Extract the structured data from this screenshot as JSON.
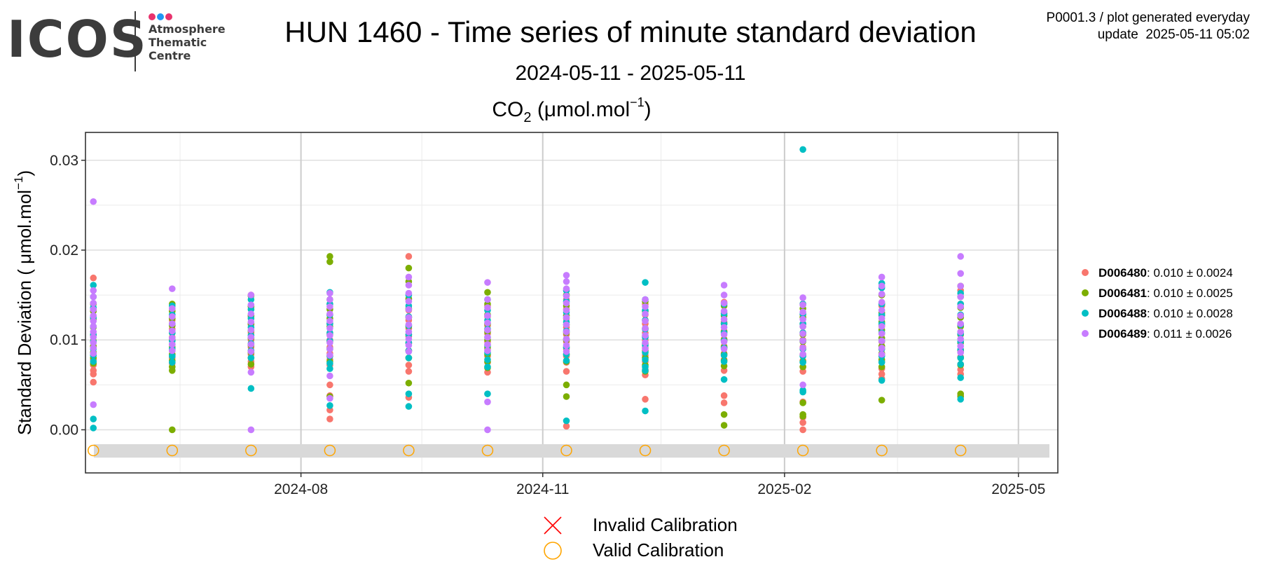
{
  "logo": {
    "wordmark": "ICOS",
    "text": "Atmosphere\nThematic\nCentre",
    "dot_colors": [
      "#e8336d",
      "#2196f3",
      "#e8336d"
    ]
  },
  "meta": {
    "line1": "P0001.3 / plot generated everyday",
    "line2": "update  2025-05-11 05:02"
  },
  "header": {
    "title": "HUN 1460 - Time series of minute standard deviation",
    "subtitle": "2024-05-11 - 2025-05-11"
  },
  "chart_data": {
    "type": "scatter",
    "panel_title": {
      "main": "CO",
      "sub": "2",
      "unit_prefix": " (μmol.mol",
      "sup": "−1",
      "unit_suffix": ")"
    },
    "ylabel": {
      "main": "Standard Deviation ( μmol.mol",
      "sup": "−1",
      "suffix": ")"
    },
    "xlim": [
      "2024-05-11",
      "2025-05-16"
    ],
    "ylim": [
      -0.0048,
      0.0331
    ],
    "x_ticks": [
      {
        "date": "2024-08-01",
        "label": "2024-08"
      },
      {
        "date": "2024-11-01",
        "label": "2024-11"
      },
      {
        "date": "2025-02-01",
        "label": "2025-02"
      },
      {
        "date": "2025-05-01",
        "label": "2025-05"
      }
    ],
    "x_minor_ticks": [
      "2024-06-16",
      "2024-09-16",
      "2024-12-16",
      "2025-03-16"
    ],
    "y_ticks": [
      {
        "value": 0.0,
        "label": "0.00"
      },
      {
        "value": 0.01,
        "label": "0.01"
      },
      {
        "value": 0.02,
        "label": "0.02"
      },
      {
        "value": 0.03,
        "label": "0.03"
      }
    ],
    "y_minor_ticks": [
      0.005,
      0.015,
      0.025
    ],
    "grid": true,
    "calibration_band": [
      -0.0031,
      -0.0016
    ],
    "calibration_dates": [
      "2024-05-14",
      "2024-06-13",
      "2024-07-13",
      "2024-08-12",
      "2024-09-11",
      "2024-10-11",
      "2024-11-10",
      "2024-12-10",
      "2025-01-09",
      "2025-02-08",
      "2025-03-10",
      "2025-04-09"
    ],
    "calibration_y": -0.0023,
    "series": [
      {
        "name": "D006480",
        "stats": ": 0.010 ± 0.0024",
        "color": "#F8766D",
        "groups": [
          {
            "date": "2024-05-14",
            "values": [
              0.0169,
              0.0135,
              0.0125,
              0.0115,
              0.0105,
              0.0098,
              0.0092,
              0.0085,
              0.0078,
              0.0072,
              0.0066,
              0.0062,
              0.0053
            ]
          },
          {
            "date": "2024-06-13",
            "values": [
              0.0135,
              0.0122,
              0.0112,
              0.0103,
              0.0095,
              0.0088,
              0.008,
              0.0074
            ]
          },
          {
            "date": "2024-07-13",
            "values": [
              0.015,
              0.0138,
              0.0126,
              0.0117,
              0.0108,
              0.01,
              0.0092,
              0.0084,
              0.0076,
              0.007
            ]
          },
          {
            "date": "2024-08-12",
            "values": [
              0.014,
              0.0128,
              0.0118,
              0.0108,
              0.01,
              0.0092,
              0.0085,
              0.0078,
              0.0072,
              0.005,
              0.0038,
              0.0022,
              0.0012
            ]
          },
          {
            "date": "2024-09-11",
            "values": [
              0.0193,
              0.0145,
              0.0133,
              0.0122,
              0.0113,
              0.0104,
              0.0096,
              0.0088,
              0.008,
              0.0072,
              0.0065,
              0.0036
            ]
          },
          {
            "date": "2024-10-11",
            "values": [
              0.0138,
              0.0126,
              0.0116,
              0.0107,
              0.0098,
              0.009,
              0.0082,
              0.0075,
              0.0064
            ]
          },
          {
            "date": "2024-11-10",
            "values": [
              0.0145,
              0.0134,
              0.0124,
              0.0114,
              0.0106,
              0.0098,
              0.009,
              0.0082,
              0.0075,
              0.0065,
              0.0004
            ]
          },
          {
            "date": "2024-12-10",
            "values": [
              0.014,
              0.0128,
              0.0118,
              0.0108,
              0.01,
              0.0091,
              0.0083,
              0.0076,
              0.0067,
              0.0061,
              0.0034
            ]
          },
          {
            "date": "2025-01-09",
            "values": [
              0.0142,
              0.013,
              0.012,
              0.011,
              0.0101,
              0.0093,
              0.0085,
              0.0078,
              0.0066,
              0.0038,
              0.003
            ]
          },
          {
            "date": "2025-02-08",
            "values": [
              0.014,
              0.0128,
              0.0118,
              0.0108,
              0.01,
              0.0092,
              0.0084,
              0.0077,
              0.007,
              0.0065,
              0.0031,
              0.0014,
              0.0008,
              0.0
            ]
          },
          {
            "date": "2025-03-10",
            "values": [
              0.015,
              0.0138,
              0.0127,
              0.0116,
              0.0107,
              0.0098,
              0.009,
              0.0083,
              0.0076,
              0.0068,
              0.0062,
              0.0057
            ]
          },
          {
            "date": "2025-04-09",
            "values": [
              0.0155,
              0.014,
              0.0127,
              0.0116,
              0.0106,
              0.0097,
              0.0089,
              0.0081,
              0.0073,
              0.0067,
              0.0062,
              0.0038
            ]
          }
        ]
      },
      {
        "name": "D006481",
        "stats": ": 0.010 ± 0.0025",
        "color": "#7CAE00",
        "groups": [
          {
            "date": "2024-05-14",
            "values": [
              0.014,
              0.0132,
              0.0123,
              0.0114,
              0.0106,
              0.0099,
              0.0093,
              0.0086,
              0.008,
              0.0074
            ]
          },
          {
            "date": "2024-06-13",
            "values": [
              0.014,
              0.0132,
              0.0124,
              0.0116,
              0.0108,
              0.01,
              0.0092,
              0.0084,
              0.0077,
              0.007,
              0.0066,
              0.0
            ]
          },
          {
            "date": "2024-07-13",
            "values": [
              0.0149,
              0.0137,
              0.0127,
              0.0118,
              0.011,
              0.0102,
              0.0094,
              0.0086,
              0.008,
              0.0073
            ]
          },
          {
            "date": "2024-08-12",
            "values": [
              0.0193,
              0.0187,
              0.0145,
              0.0134,
              0.0124,
              0.0115,
              0.0106,
              0.0098,
              0.009,
              0.0082,
              0.0076,
              0.0037
            ]
          },
          {
            "date": "2024-09-11",
            "values": [
              0.018,
              0.0165,
              0.0146,
              0.0135,
              0.0125,
              0.0115,
              0.0106,
              0.0097,
              0.0088,
              0.008,
              0.0052
            ]
          },
          {
            "date": "2024-10-11",
            "values": [
              0.0153,
              0.014,
              0.0128,
              0.0118,
              0.0109,
              0.01,
              0.0092,
              0.0084,
              0.0076,
              0.0069
            ]
          },
          {
            "date": "2024-11-10",
            "values": [
              0.015,
              0.0138,
              0.0127,
              0.0117,
              0.0108,
              0.01,
              0.0092,
              0.0084,
              0.0076,
              0.005,
              0.0037
            ]
          },
          {
            "date": "2024-12-10",
            "values": [
              0.0143,
              0.0132,
              0.0122,
              0.0113,
              0.0104,
              0.0096,
              0.0088,
              0.008,
              0.0072,
              0.0065
            ]
          },
          {
            "date": "2025-01-09",
            "values": [
              0.0138,
              0.0127,
              0.0118,
              0.0109,
              0.01,
              0.0092,
              0.0084,
              0.0077,
              0.0071,
              0.0017,
              0.0005
            ]
          },
          {
            "date": "2025-02-08",
            "values": [
              0.0135,
              0.0125,
              0.0115,
              0.0106,
              0.0098,
              0.009,
              0.0083,
              0.0076,
              0.007,
              0.003,
              0.0017,
              0.0015
            ]
          },
          {
            "date": "2025-03-10",
            "values": [
              0.015,
              0.014,
              0.013,
              0.012,
              0.0111,
              0.0102,
              0.0093,
              0.0085,
              0.0078,
              0.007,
              0.0033
            ]
          },
          {
            "date": "2025-04-09",
            "values": [
              0.016,
              0.0148,
              0.0136,
              0.0125,
              0.0115,
              0.0106,
              0.0097,
              0.0088,
              0.008,
              0.0072,
              0.004,
              0.0037
            ]
          }
        ]
      },
      {
        "name": "D006488",
        "stats": ": 0.010 ± 0.0028",
        "color": "#00BFC4",
        "groups": [
          {
            "date": "2024-05-14",
            "values": [
              0.0161,
              0.0148,
              0.0136,
              0.0125,
              0.0115,
              0.0106,
              0.0098,
              0.009,
              0.0083,
              0.0076,
              0.0012,
              0.0002
            ]
          },
          {
            "date": "2024-06-13",
            "values": [
              0.0138,
              0.0128,
              0.0118,
              0.0108,
              0.0099,
              0.009,
              0.0082,
              0.0075
            ]
          },
          {
            "date": "2024-07-13",
            "values": [
              0.0145,
              0.0134,
              0.0124,
              0.0114,
              0.0105,
              0.0096,
              0.0088,
              0.008,
              0.0046
            ]
          },
          {
            "date": "2024-08-12",
            "values": [
              0.0153,
              0.014,
              0.0128,
              0.0118,
              0.0108,
              0.0099,
              0.009,
              0.0082,
              0.0074,
              0.0068,
              0.0027
            ]
          },
          {
            "date": "2024-09-11",
            "values": [
              0.015,
              0.0138,
              0.0126,
              0.0116,
              0.0106,
              0.0097,
              0.0088,
              0.008,
              0.004,
              0.0026
            ]
          },
          {
            "date": "2024-10-11",
            "values": [
              0.0145,
              0.0133,
              0.0122,
              0.0112,
              0.0103,
              0.0094,
              0.0086,
              0.0078,
              0.007,
              0.004
            ]
          },
          {
            "date": "2024-11-10",
            "values": [
              0.0155,
              0.0143,
              0.0131,
              0.012,
              0.011,
              0.0101,
              0.0092,
              0.0084,
              0.0077,
              0.001
            ]
          },
          {
            "date": "2024-12-10",
            "values": [
              0.0164,
              0.0145,
              0.0133,
              0.0122,
              0.0112,
              0.0103,
              0.0094,
              0.0086,
              0.0078,
              0.007,
              0.0066,
              0.0021
            ]
          },
          {
            "date": "2025-01-09",
            "values": [
              0.014,
              0.0129,
              0.0118,
              0.0108,
              0.0099,
              0.0091,
              0.0083,
              0.0076,
              0.0056
            ]
          },
          {
            "date": "2025-02-08",
            "values": [
              0.0312,
              0.014,
              0.0129,
              0.0118,
              0.0108,
              0.0099,
              0.009,
              0.0082,
              0.0075,
              0.0044,
              0.0042
            ]
          },
          {
            "date": "2025-03-10",
            "values": [
              0.0163,
              0.0158,
              0.014,
              0.0128,
              0.0118,
              0.0108,
              0.0099,
              0.009,
              0.0082,
              0.0075,
              0.0055
            ]
          },
          {
            "date": "2025-04-09",
            "values": [
              0.0152,
              0.014,
              0.0128,
              0.0117,
              0.0107,
              0.0098,
              0.0089,
              0.008,
              0.0073,
              0.0058,
              0.0034
            ]
          }
        ]
      },
      {
        "name": "D006489",
        "stats": ": 0.011 ± 0.0026",
        "color": "#C77CFF",
        "groups": [
          {
            "date": "2024-05-14",
            "values": [
              0.0254,
              0.0155,
              0.0148,
              0.0141,
              0.0134,
              0.0127,
              0.0121,
              0.0115,
              0.0109,
              0.0103,
              0.0097,
              0.0091,
              0.0085,
              0.0028
            ]
          },
          {
            "date": "2024-06-13",
            "values": [
              0.0157,
              0.0135,
              0.0126,
              0.0118,
              0.011,
              0.0102,
              0.0095,
              0.0088
            ]
          },
          {
            "date": "2024-07-13",
            "values": [
              0.015,
              0.0139,
              0.0129,
              0.012,
              0.0111,
              0.0103,
              0.0095,
              0.0087,
              0.0064,
              0.0
            ]
          },
          {
            "date": "2024-08-12",
            "values": [
              0.0152,
              0.0145,
              0.0137,
              0.0129,
              0.0121,
              0.0113,
              0.0105,
              0.0097,
              0.009,
              0.0083,
              0.006,
              0.0035
            ]
          },
          {
            "date": "2024-09-11",
            "values": [
              0.017,
              0.0161,
              0.0152,
              0.0143,
              0.0134,
              0.0125,
              0.0117,
              0.0109,
              0.0101,
              0.0094,
              0.0087
            ]
          },
          {
            "date": "2024-10-11",
            "values": [
              0.0164,
              0.0145,
              0.0136,
              0.0127,
              0.0119,
              0.0111,
              0.0103,
              0.0095,
              0.0088,
              0.0031,
              0.0
            ]
          },
          {
            "date": "2024-11-10",
            "values": [
              0.0172,
              0.0165,
              0.0157,
              0.0149,
              0.0141,
              0.0133,
              0.0125,
              0.0117,
              0.0109,
              0.0101,
              0.0094,
              0.0087
            ]
          },
          {
            "date": "2024-12-10",
            "values": [
              0.0145,
              0.0137,
              0.0129,
              0.0121,
              0.0113,
              0.0105,
              0.0097,
              0.009
            ]
          },
          {
            "date": "2025-01-09",
            "values": [
              0.0161,
              0.015,
              0.0141,
              0.0132,
              0.0123,
              0.0114,
              0.0106,
              0.0098,
              0.009
            ]
          },
          {
            "date": "2025-02-08",
            "values": [
              0.0147,
              0.0139,
              0.0131,
              0.0123,
              0.0115,
              0.0107,
              0.0099,
              0.0091,
              0.0084,
              0.005
            ]
          },
          {
            "date": "2025-03-10",
            "values": [
              0.017,
              0.016,
              0.0151,
              0.0142,
              0.0133,
              0.0124,
              0.0115,
              0.0107,
              0.0099,
              0.0091,
              0.0084
            ]
          },
          {
            "date": "2025-04-09",
            "values": [
              0.0193,
              0.0174,
              0.016,
              0.0148,
              0.0137,
              0.0127,
              0.0118,
              0.0109,
              0.0101,
              0.0093,
              0.0086
            ]
          }
        ]
      }
    ],
    "calibration_legend": [
      {
        "label": "Invalid Calibration",
        "symbol": "x",
        "color": "#FF0000"
      },
      {
        "label": "Valid Calibration",
        "symbol": "circle",
        "color": "#FFA500"
      }
    ]
  }
}
